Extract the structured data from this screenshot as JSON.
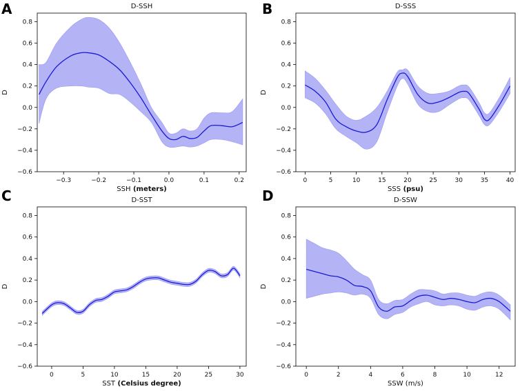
{
  "chart_data": [
    {
      "type": "line",
      "panel": "A",
      "title": "D-SSH",
      "xlabel": "SSH",
      "xunit": "(meters)",
      "ylabel": "D",
      "xlim": [
        -0.375,
        0.22
      ],
      "ylim": [
        -0.6,
        0.88
      ],
      "xticks": [
        -0.3,
        -0.2,
        -0.1,
        0.0,
        0.1,
        0.2
      ],
      "xtick_labels": [
        "−0.3",
        "−0.2",
        "−0.1",
        "0.0",
        "0.1",
        "0.2"
      ],
      "yticks": [
        -0.6,
        -0.4,
        -0.2,
        0.0,
        0.2,
        0.4,
        0.6,
        0.8
      ],
      "ytick_labels": [
        "−0.6",
        "−0.4",
        "−0.2",
        "0.0",
        "0.2",
        "0.4",
        "0.6",
        "0.8"
      ],
      "x": [
        -0.37,
        -0.35,
        -0.32,
        -0.28,
        -0.25,
        -0.23,
        -0.2,
        -0.17,
        -0.14,
        -0.11,
        -0.08,
        -0.05,
        -0.02,
        0.0,
        0.02,
        0.04,
        0.06,
        0.08,
        0.1,
        0.12,
        0.15,
        0.18,
        0.21
      ],
      "y": [
        0.12,
        0.24,
        0.38,
        0.48,
        0.51,
        0.51,
        0.49,
        0.43,
        0.35,
        0.23,
        0.09,
        -0.07,
        -0.22,
        -0.29,
        -0.3,
        -0.27,
        -0.29,
        -0.28,
        -0.22,
        -0.17,
        -0.17,
        -0.18,
        -0.14
      ],
      "upper": [
        0.4,
        0.42,
        0.6,
        0.75,
        0.82,
        0.84,
        0.82,
        0.74,
        0.6,
        0.42,
        0.22,
        0.0,
        -0.14,
        -0.24,
        -0.24,
        -0.2,
        -0.22,
        -0.2,
        -0.1,
        -0.05,
        -0.05,
        -0.04,
        0.08
      ],
      "lower": [
        -0.15,
        0.08,
        0.18,
        0.2,
        0.2,
        0.19,
        0.18,
        0.13,
        0.12,
        0.05,
        -0.04,
        -0.14,
        -0.32,
        -0.37,
        -0.37,
        -0.36,
        -0.37,
        -0.36,
        -0.33,
        -0.3,
        -0.3,
        -0.32,
        -0.35
      ]
    },
    {
      "type": "line",
      "panel": "B",
      "title": "D-SSS",
      "xlabel": "SSS",
      "xunit": "(psu)",
      "ylabel": "D",
      "xlim": [
        -1.8,
        41
      ],
      "ylim": [
        -0.6,
        0.88
      ],
      "xticks": [
        0,
        5,
        10,
        15,
        20,
        25,
        30,
        35,
        40
      ],
      "xtick_labels": [
        "0",
        "5",
        "10",
        "15",
        "20",
        "25",
        "30",
        "35",
        "40"
      ],
      "yticks": [
        -0.6,
        -0.4,
        -0.2,
        0.0,
        0.2,
        0.4,
        0.6,
        0.8
      ],
      "ytick_labels": [
        "−0.6",
        "−0.4",
        "−0.2",
        "0.0",
        "0.2",
        "0.4",
        "0.6",
        "0.8"
      ],
      "x": [
        0,
        2,
        4,
        6,
        8,
        10,
        12,
        14,
        16,
        18,
        19,
        20,
        22,
        24,
        26,
        28,
        30,
        31,
        32,
        34,
        35,
        36,
        38,
        40
      ],
      "y": [
        0.21,
        0.15,
        0.05,
        -0.11,
        -0.18,
        -0.22,
        -0.23,
        -0.16,
        0.07,
        0.28,
        0.32,
        0.29,
        0.12,
        0.04,
        0.05,
        0.09,
        0.14,
        0.15,
        0.13,
        -0.02,
        -0.11,
        -0.11,
        0.03,
        0.2
      ],
      "upper": [
        0.34,
        0.27,
        0.16,
        0.03,
        -0.08,
        -0.12,
        -0.08,
        0.0,
        0.15,
        0.33,
        0.35,
        0.35,
        0.2,
        0.13,
        0.13,
        0.15,
        0.2,
        0.21,
        0.19,
        0.04,
        -0.05,
        -0.05,
        0.1,
        0.28
      ],
      "lower": [
        0.09,
        0.04,
        -0.06,
        -0.2,
        -0.27,
        -0.33,
        -0.39,
        -0.32,
        -0.05,
        0.2,
        0.27,
        0.22,
        0.03,
        -0.04,
        -0.04,
        0.02,
        0.08,
        0.09,
        0.07,
        -0.08,
        -0.16,
        -0.16,
        -0.03,
        0.13
      ]
    },
    {
      "type": "line",
      "panel": "C",
      "title": "D-SST",
      "xlabel": "SST",
      "xunit": "(Celsius degree)",
      "ylabel": "D",
      "xlim": [
        -2.3,
        31
      ],
      "ylim": [
        -0.6,
        0.88
      ],
      "xticks": [
        0,
        5,
        10,
        15,
        20,
        25,
        30
      ],
      "xtick_labels": [
        "0",
        "5",
        "10",
        "15",
        "20",
        "25",
        "30"
      ],
      "yticks": [
        -0.6,
        -0.4,
        -0.2,
        0.0,
        0.2,
        0.4,
        0.6,
        0.8
      ],
      "ytick_labels": [
        "−0.6",
        "−0.4",
        "−0.2",
        "0.0",
        "0.2",
        "0.4",
        "0.6",
        "0.8"
      ],
      "x": [
        -1.5,
        0,
        1,
        2,
        3,
        4,
        5,
        6,
        7,
        8,
        9,
        10,
        11,
        12,
        13,
        14,
        15,
        16,
        17,
        18,
        19,
        20,
        21,
        22,
        23,
        24,
        25,
        26,
        27,
        28,
        29,
        30
      ],
      "y": [
        -0.11,
        -0.03,
        -0.01,
        -0.02,
        -0.06,
        -0.1,
        -0.09,
        -0.03,
        0.01,
        0.02,
        0.05,
        0.09,
        0.1,
        0.11,
        0.14,
        0.18,
        0.21,
        0.22,
        0.22,
        0.2,
        0.18,
        0.17,
        0.16,
        0.16,
        0.19,
        0.25,
        0.29,
        0.28,
        0.24,
        0.25,
        0.31,
        0.24
      ],
      "band": 0.018
    },
    {
      "type": "line",
      "panel": "D",
      "title": "D-SSW",
      "xlabel": "SSW (m/s)",
      "xunit": "",
      "ylabel": "D",
      "xlim": [
        -0.65,
        13
      ],
      "ylim": [
        -0.6,
        0.88
      ],
      "xticks": [
        0,
        2,
        4,
        6,
        8,
        10,
        12
      ],
      "xtick_labels": [
        "0",
        "2",
        "4",
        "6",
        "8",
        "10",
        "12"
      ],
      "yticks": [
        -0.6,
        -0.4,
        -0.2,
        0.0,
        0.2,
        0.4,
        0.6,
        0.8
      ],
      "ytick_labels": [
        "−0.6",
        "−0.4",
        "−0.2",
        "0.0",
        "0.2",
        "0.4",
        "0.6",
        "0.8"
      ],
      "x": [
        0,
        0.5,
        1,
        1.5,
        2,
        2.5,
        3,
        3.5,
        4,
        4.5,
        5,
        5.5,
        6,
        6.5,
        7,
        7.5,
        8,
        8.5,
        9,
        9.5,
        10,
        10.5,
        11,
        11.5,
        12,
        12.7
      ],
      "y": [
        0.3,
        0.28,
        0.26,
        0.24,
        0.23,
        0.2,
        0.15,
        0.14,
        0.1,
        -0.05,
        -0.09,
        -0.05,
        -0.04,
        0.01,
        0.05,
        0.06,
        0.04,
        0.02,
        0.03,
        0.02,
        0.0,
        -0.01,
        0.02,
        0.03,
        0.0,
        -0.09
      ],
      "upper": [
        0.58,
        0.54,
        0.5,
        0.48,
        0.45,
        0.38,
        0.3,
        0.25,
        0.2,
        0.02,
        -0.02,
        0.01,
        0.02,
        0.07,
        0.11,
        0.11,
        0.1,
        0.07,
        0.08,
        0.08,
        0.06,
        0.05,
        0.08,
        0.09,
        0.06,
        -0.03
      ],
      "lower": [
        0.03,
        0.05,
        0.07,
        0.08,
        0.09,
        0.08,
        0.06,
        0.07,
        0.03,
        -0.12,
        -0.16,
        -0.12,
        -0.1,
        -0.05,
        -0.02,
        0.0,
        -0.03,
        -0.04,
        -0.03,
        -0.04,
        -0.07,
        -0.08,
        -0.05,
        -0.04,
        -0.07,
        -0.17
      ]
    }
  ],
  "colors": {
    "line": "#1a1ad6",
    "band": "#9a9af2",
    "band_edge": "#8383ec"
  }
}
